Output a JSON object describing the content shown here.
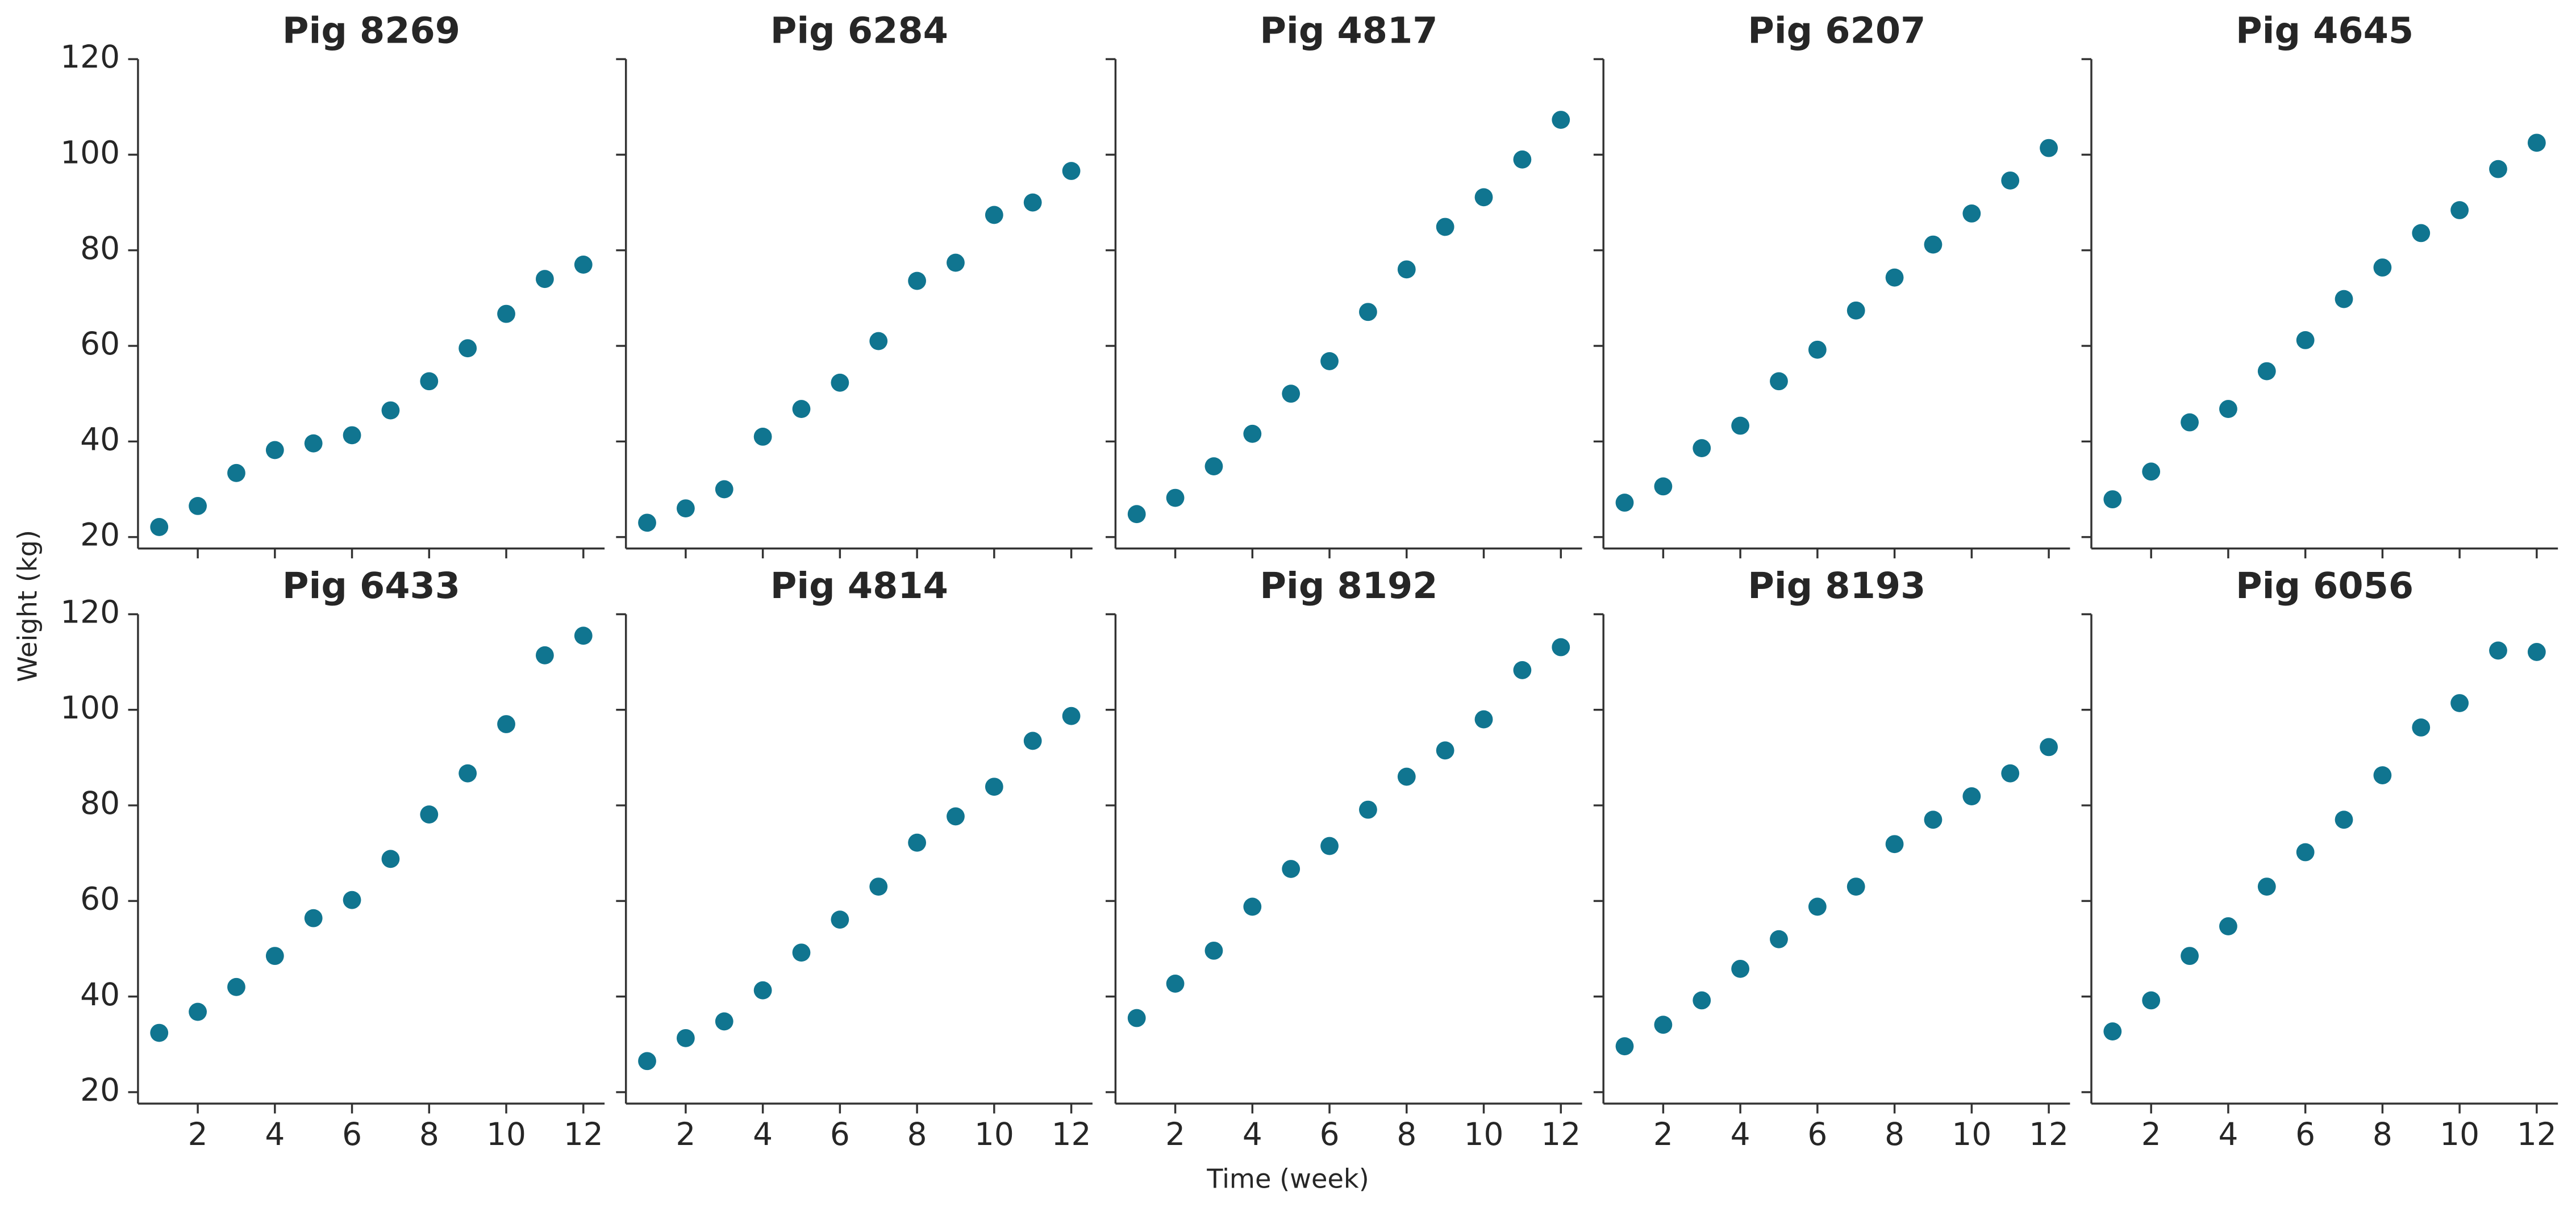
{
  "chart_data": {
    "type": "scatter",
    "xlabel": "Time (week)",
    "ylabel": "Weight (kg)",
    "color": "#107590",
    "xlim": [
      0.45,
      12.55
    ],
    "ylim": [
      17.6,
      120
    ],
    "xticks": [
      2,
      4,
      6,
      8,
      10,
      12
    ],
    "yticks": [
      20,
      40,
      60,
      80,
      100,
      120
    ],
    "x": [
      1,
      2,
      3,
      4,
      5,
      6,
      7,
      8,
      9,
      10,
      11,
      12
    ],
    "panels": [
      {
        "title": "Pig 8269",
        "values": [
          22.1,
          26.5,
          33.4,
          38.2,
          39.6,
          41.3,
          46.5,
          52.6,
          59.5,
          66.7,
          74,
          77
        ]
      },
      {
        "title": "Pig 6284",
        "values": [
          23,
          26,
          30,
          41,
          46.8,
          52.3,
          61,
          73.6,
          77.4,
          87.4,
          90,
          96.6
        ]
      },
      {
        "title": "Pig 4817",
        "values": [
          24.8,
          28.2,
          34.8,
          41.6,
          50,
          56.8,
          67.1,
          76,
          84.9,
          91.1,
          99,
          107.3
        ]
      },
      {
        "title": "Pig 6207",
        "values": [
          27.2,
          30.6,
          38.6,
          43.3,
          52.6,
          59.2,
          67.4,
          74.3,
          81.2,
          87.7,
          94.6,
          101.4
        ]
      },
      {
        "title": "Pig 4645",
        "values": [
          27.9,
          33.7,
          44,
          46.8,
          54.7,
          61.2,
          69.8,
          76.4,
          83.6,
          88.4,
          97,
          102.5
        ]
      },
      {
        "title": "Pig 6433",
        "values": [
          32.4,
          36.8,
          42,
          48.5,
          56.4,
          60.2,
          68.8,
          78.1,
          86.7,
          97,
          111.4,
          115.5
        ]
      },
      {
        "title": "Pig 4814",
        "values": [
          26.5,
          31.3,
          34.8,
          41.3,
          49.2,
          56.1,
          63,
          72.2,
          77.7,
          83.9,
          93.5,
          98.7
        ]
      },
      {
        "title": "Pig 8192",
        "values": [
          35.5,
          42.7,
          49.6,
          58.8,
          66.7,
          71.5,
          79.1,
          86,
          91.5,
          98,
          108.3,
          113.1
        ]
      },
      {
        "title": "Pig 8193",
        "values": [
          29.6,
          34.1,
          39.2,
          45.8,
          52,
          58.8,
          63,
          71.9,
          77,
          81.9,
          86.7,
          92.2
        ]
      },
      {
        "title": "Pig 6056",
        "values": [
          32.7,
          39.2,
          48.5,
          54.7,
          63,
          70.2,
          77,
          86.3,
          96.3,
          101.4,
          112.4,
          112.1
        ]
      }
    ]
  }
}
